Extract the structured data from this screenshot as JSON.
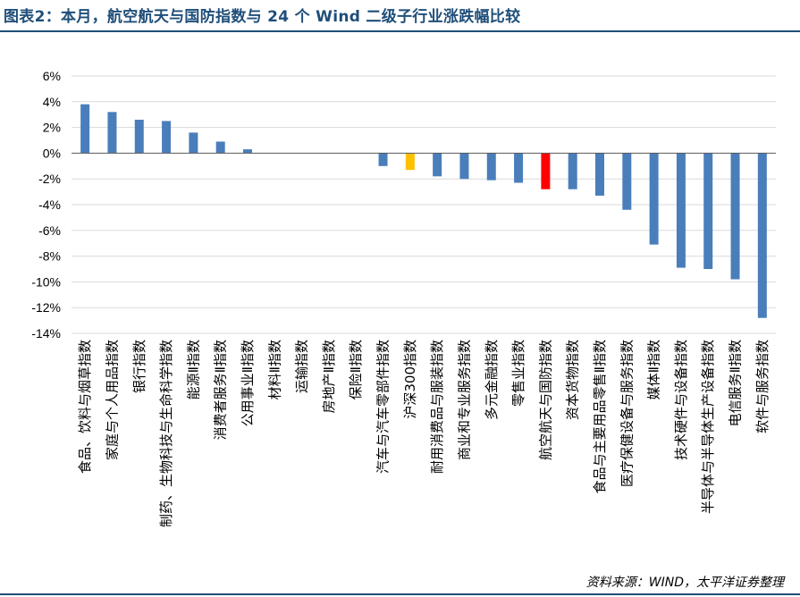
{
  "header": {
    "title": "图表2：本月，航空航天与国防指数与 24 个 Wind 二级子行业涨跌幅比较"
  },
  "footer": {
    "source": "资料来源：WIND，太平洋证券整理"
  },
  "colors": {
    "default": "#4a7ebb",
    "benchmark": "#ffc000",
    "highlight": "#ff0000",
    "grid": "#d9d9d9",
    "axis": "#595959"
  },
  "chart_data": {
    "type": "bar",
    "title": "",
    "xlabel": "",
    "ylabel": "",
    "ylim": [
      -14,
      6
    ],
    "yticks": [
      6,
      4,
      2,
      0,
      -2,
      -4,
      -6,
      -8,
      -10,
      -12,
      -14
    ],
    "ytick_labels": [
      "6%",
      "4%",
      "2%",
      "0%",
      "-2%",
      "-4%",
      "-6%",
      "-8%",
      "-10%",
      "-12%",
      "-14%"
    ],
    "grid": true,
    "categories": [
      "食品、饮料与烟草指数",
      "家庭与个人用品指数",
      "银行指数",
      "制药、生物科技与生命科学指数",
      "能源Ⅱ指数",
      "消费者服务Ⅱ指数",
      "公用事业Ⅱ指数",
      "材料Ⅱ指数",
      "运输指数",
      "房地产Ⅱ指数",
      "保险Ⅱ指数",
      "汽车与汽车零部件指数",
      "沪深300指数",
      "耐用消费品与服装指数",
      "商业和专业服务指数",
      "多元金融指数",
      "零售业指数",
      "航空航天与国防指数",
      "资本货物指数",
      "食品与主要用品零售Ⅱ指数",
      "医疗保健设备与服务指数",
      "媒体Ⅱ指数",
      "技术硬件与设备指数",
      "半导体与半导体生产设备指数",
      "电信服务Ⅱ指数",
      "软件与服务指数"
    ],
    "values": [
      3.8,
      3.2,
      2.6,
      2.5,
      1.6,
      0.9,
      0.3,
      0,
      0,
      0,
      0,
      -1.0,
      -1.3,
      -1.8,
      -2.0,
      -2.1,
      -2.3,
      -2.8,
      -2.8,
      -3.3,
      -4.4,
      -7.1,
      -8.9,
      -9.0,
      -9.8,
      -12.8
    ],
    "bar_colors": [
      "default",
      "default",
      "default",
      "default",
      "default",
      "default",
      "default",
      "default",
      "default",
      "default",
      "default",
      "default",
      "benchmark",
      "default",
      "default",
      "default",
      "default",
      "highlight",
      "default",
      "default",
      "default",
      "default",
      "default",
      "default",
      "default",
      "default"
    ]
  }
}
